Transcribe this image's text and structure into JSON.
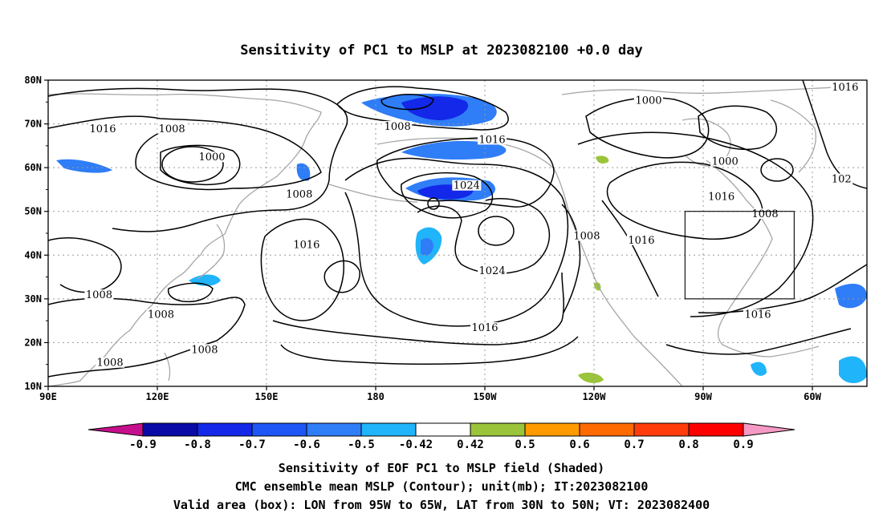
{
  "title": "Sensitivity of PC1 to MSLP at 2023082100 +0.0 day",
  "lat_ticks": [
    "80N",
    "70N",
    "60N",
    "50N",
    "40N",
    "30N",
    "20N",
    "10N"
  ],
  "lon_ticks": [
    "90E",
    "120E",
    "150E",
    "180",
    "150W",
    "120W",
    "90W",
    "60W"
  ],
  "contour_labels": [
    {
      "text": "1016",
      "lon": 105,
      "lat": 68.5
    },
    {
      "text": "1008",
      "lon": 124,
      "lat": 68.5
    },
    {
      "text": "1000",
      "lon": 135,
      "lat": 62
    },
    {
      "text": "1008",
      "lon": 159,
      "lat": 53.5
    },
    {
      "text": "1016",
      "lon": 161,
      "lat": 42
    },
    {
      "text": "1008",
      "lon": 104,
      "lat": 30.5
    },
    {
      "text": "1008",
      "lon": 121,
      "lat": 26
    },
    {
      "text": "1008",
      "lon": 133,
      "lat": 18
    },
    {
      "text": "1008",
      "lon": 107,
      "lat": 15
    },
    {
      "text": "1008",
      "lon": -174,
      "lat": 69
    },
    {
      "text": "1016",
      "lon": -148,
      "lat": 66
    },
    {
      "text": "1024",
      "lon": -155,
      "lat": 55.5
    },
    {
      "text": "1024",
      "lon": -148,
      "lat": 36
    },
    {
      "text": "1016",
      "lon": -150,
      "lat": 23
    },
    {
      "text": "1008",
      "lon": -122,
      "lat": 44
    },
    {
      "text": "1016",
      "lon": -107,
      "lat": 43
    },
    {
      "text": "1000",
      "lon": -105,
      "lat": 75
    },
    {
      "text": "1000",
      "lon": -84,
      "lat": 61
    },
    {
      "text": "1016",
      "lon": -85,
      "lat": 53
    },
    {
      "text": "1008",
      "lon": -73,
      "lat": 49
    },
    {
      "text": "1016",
      "lon": -75,
      "lat": 26
    },
    {
      "text": "1016",
      "lon": -51,
      "lat": 78
    },
    {
      "text": "102",
      "lon": -52,
      "lat": 57
    }
  ],
  "valid_box": {
    "lon_west": -95,
    "lon_east": -65,
    "lat_south": 30,
    "lat_north": 50
  },
  "colorbar": {
    "labels": [
      "-0.9",
      "-0.8",
      "-0.7",
      "-0.6",
      "-0.5",
      "-0.42",
      "0.42",
      "0.5",
      "0.6",
      "0.7",
      "0.8",
      "0.9"
    ],
    "colors": [
      "#0a0aa6",
      "#1328e8",
      "#1e55f5",
      "#2f7df7",
      "#20b4fa",
      "#ffffff",
      "#9ac43a",
      "#ff9a00",
      "#ff6a00",
      "#ff3c0a",
      "#ff0000"
    ],
    "low_end_color": "#c60f8c",
    "high_end_color": "#f59ac4"
  },
  "caption": [
    "Sensitivity of EOF PC1 to MSLP field (Shaded)",
    "CMC ensemble mean MSLP (Contour); unit(mb); IT:2023082100",
    "Valid area (box): LON from 95W to 65W, LAT from 30N to 50N; VT: 2023082400"
  ]
}
